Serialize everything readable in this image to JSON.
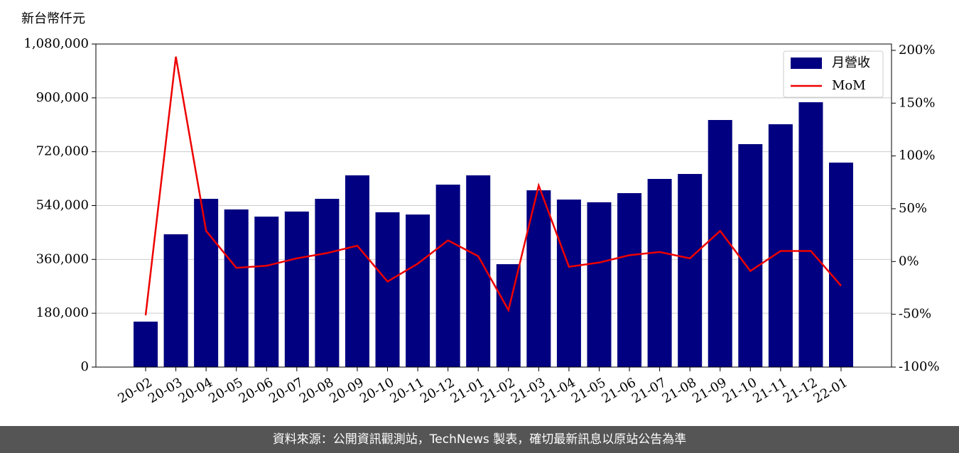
{
  "chart_data": {
    "type": "bar",
    "ylabel": "新台幣仟元",
    "categories": [
      "20-02",
      "20-03",
      "20-04",
      "20-05",
      "20-06",
      "20-07",
      "20-08",
      "20-09",
      "20-10",
      "20-11",
      "20-12",
      "21-01",
      "21-02",
      "21-03",
      "21-04",
      "21-05",
      "21-06",
      "21-07",
      "21-08",
      "21-09",
      "21-10",
      "21-11",
      "21-12",
      "22-01"
    ],
    "series": [
      {
        "name": "月營收",
        "color": "#000080",
        "values": [
          152000,
          444000,
          562500,
          527000,
          503000,
          520000,
          562500,
          641000,
          517500,
          510000,
          610000,
          641000,
          344000,
          591000,
          560000,
          551000,
          581500,
          629000,
          645600,
          826000,
          745300,
          811800,
          885400,
          683600
        ]
      },
      {
        "name": "MoM",
        "color": "#ee0000",
        "axis": "y2",
        "type": "line",
        "values": [
          -51,
          194,
          29,
          -6,
          -4,
          3,
          8,
          15,
          -19,
          -2,
          20,
          5,
          -46,
          72,
          -5,
          -1,
          6,
          9,
          3,
          29,
          -9,
          10,
          10,
          -23
        ]
      }
    ],
    "ylim": [
      0,
      1080000
    ],
    "yticks": [
      0,
      {
        "value": 180000,
        "label": "180,000"
      },
      {
        "value": 360000,
        "label": "360,000"
      },
      {
        "value": 540000,
        "label": "540,000"
      },
      {
        "value": 720000,
        "label": "720,000"
      },
      {
        "value": 900000,
        "label": "900,000"
      },
      {
        "value": 1080000,
        "label": "1,080,000"
      }
    ],
    "y2lim": [
      -100,
      206
    ],
    "y2ticks": [
      {
        "value": -100,
        "label": "-100%"
      },
      {
        "value": -50,
        "label": "-50%"
      },
      {
        "value": 0,
        "label": "0%"
      },
      {
        "value": 50,
        "label": "50%"
      },
      {
        "value": 100,
        "label": "100%"
      },
      {
        "value": 150,
        "label": "150%"
      },
      {
        "value": 200,
        "label": "200%"
      }
    ],
    "grid": true,
    "legend": "upper right"
  },
  "footer": "資料來源：公開資訊觀測站，TechNews 製表，確切最新訊息以原站公告為準"
}
